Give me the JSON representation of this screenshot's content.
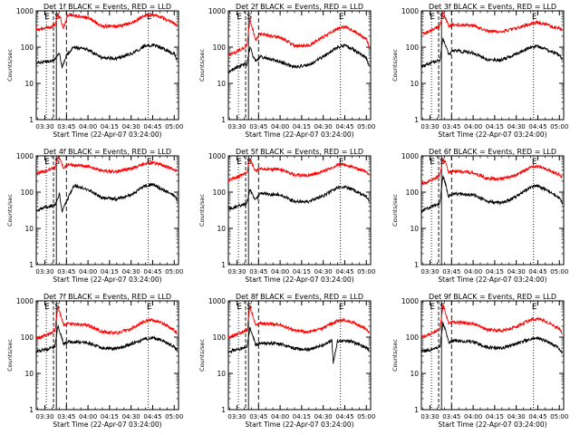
{
  "page": {
    "background": "#ffffff"
  },
  "colors": {
    "events": "#000000",
    "lld": "#ff0000",
    "axes": "#000000"
  },
  "chart_data": [
    {
      "type": "line",
      "title": "Det 1f BLACK = Events, RED = LLD",
      "xlabel": "Start Time (22-Apr-07 03:24:00)",
      "ylabel": "Counts/sec",
      "yscale": "log",
      "ylim": [
        1,
        1000
      ],
      "ytick_labels": [
        "1",
        "10",
        "100",
        "1000"
      ],
      "xlim": [
        "03:24",
        "05:03"
      ],
      "xtick_labels": [
        "03:30",
        "03:45",
        "04:00",
        "04:15",
        "04:30",
        "04:45",
        "05:00"
      ],
      "annotations": [
        "E",
        "S",
        "E"
      ],
      "series": [
        {
          "name": "BLACK = Events",
          "x": [
            "03:24",
            "03:30",
            "03:37",
            "03:40",
            "03:42",
            "03:45",
            "03:50",
            "04:00",
            "04:10",
            "04:20",
            "04:30",
            "04:40",
            "04:45",
            "04:50",
            "05:00",
            "05:02"
          ],
          "values": [
            35,
            40,
            45,
            70,
            28,
            60,
            100,
            85,
            50,
            48,
            65,
            110,
            115,
            100,
            65,
            45
          ]
        },
        {
          "name": "RED = LLD",
          "x": [
            "03:24",
            "03:30",
            "03:37",
            "03:39",
            "03:41",
            "03:43",
            "03:46",
            "04:00",
            "04:10",
            "04:20",
            "04:30",
            "04:40",
            "04:45",
            "04:50",
            "05:00",
            "05:02"
          ],
          "values": [
            300,
            330,
            400,
            800,
            600,
            330,
            800,
            650,
            380,
            370,
            450,
            750,
            780,
            700,
            450,
            380
          ]
        }
      ]
    },
    {
      "type": "line",
      "title": "Det 2f BLACK = Events, RED = LLD",
      "xlabel": "Start Time (22-Apr-07 03:24:00)",
      "ylabel": "Counts/sec",
      "yscale": "log",
      "ylim": [
        1,
        1000
      ],
      "ytick_labels": [
        "1",
        "10",
        "100",
        "1000"
      ],
      "xlim": [
        "03:24",
        "05:03"
      ],
      "xtick_labels": [
        "03:30",
        "03:45",
        "04:00",
        "04:15",
        "04:30",
        "04:45",
        "05:00"
      ],
      "annotations": [
        "E",
        "S",
        "E"
      ],
      "series": [
        {
          "name": "BLACK = Events",
          "x": [
            "03:24",
            "03:30",
            "03:37",
            "03:39",
            "03:41",
            "03:43",
            "03:46",
            "04:00",
            "04:10",
            "04:20",
            "04:30",
            "04:40",
            "04:45",
            "04:50",
            "05:00",
            "05:02"
          ],
          "values": [
            20,
            28,
            35,
            100,
            60,
            40,
            55,
            40,
            28,
            32,
            55,
            100,
            110,
            90,
            50,
            30
          ]
        },
        {
          "name": "RED = LLD",
          "x": [
            "03:24",
            "03:30",
            "03:37",
            "03:39",
            "03:41",
            "03:43",
            "03:46",
            "04:00",
            "04:10",
            "04:20",
            "04:30",
            "04:40",
            "04:45",
            "04:50",
            "05:00",
            "05:02"
          ],
          "values": [
            60,
            75,
            110,
            600,
            300,
            160,
            230,
            190,
            110,
            110,
            190,
            330,
            360,
            300,
            170,
            100
          ]
        }
      ]
    },
    {
      "type": "line",
      "title": "Det 3f BLACK = Events, RED = LLD",
      "xlabel": "Start Time (22-Apr-07 03:24:00)",
      "ylabel": "Counts/sec",
      "yscale": "log",
      "ylim": [
        1,
        1000
      ],
      "ytick_labels": [
        "1",
        "10",
        "100",
        "1000"
      ],
      "xlim": [
        "03:24",
        "05:03"
      ],
      "xtick_labels": [
        "03:30",
        "03:45",
        "04:00",
        "04:15",
        "04:30",
        "04:45",
        "05:00"
      ],
      "annotations": [
        "E",
        "S",
        "E"
      ],
      "series": [
        {
          "name": "BLACK = Events",
          "x": [
            "03:24",
            "03:30",
            "03:37",
            "03:39",
            "03:41",
            "03:43",
            "03:46",
            "04:00",
            "04:10",
            "04:20",
            "04:30",
            "04:40",
            "04:45",
            "04:50",
            "05:00",
            "05:02"
          ],
          "values": [
            28,
            35,
            45,
            180,
            110,
            60,
            80,
            70,
            45,
            45,
            65,
            100,
            105,
            90,
            60,
            45
          ]
        },
        {
          "name": "RED = LLD",
          "x": [
            "03:24",
            "03:30",
            "03:37",
            "03:39",
            "03:41",
            "03:43",
            "03:46",
            "04:00",
            "04:10",
            "04:20",
            "04:30",
            "04:40",
            "04:45",
            "04:50",
            "05:00",
            "05:02"
          ],
          "values": [
            230,
            280,
            380,
            900,
            600,
            380,
            420,
            400,
            280,
            270,
            330,
            450,
            480,
            420,
            330,
            300
          ]
        }
      ]
    },
    {
      "type": "line",
      "title": "Det 4f BLACK = Events, RED = LLD",
      "xlabel": "Start Time (22-Apr-07 03:24:00)",
      "ylabel": "Counts/sec",
      "yscale": "log",
      "ylim": [
        1,
        1000
      ],
      "ytick_labels": [
        "1",
        "10",
        "100",
        "1000"
      ],
      "xlim": [
        "03:24",
        "05:03"
      ],
      "xtick_labels": [
        "03:30",
        "03:45",
        "04:00",
        "04:15",
        "04:30",
        "04:45",
        "05:00"
      ],
      "annotations": [
        "E",
        "S",
        "E"
      ],
      "series": [
        {
          "name": "BLACK = Events",
          "x": [
            "03:24",
            "03:30",
            "03:37",
            "03:40",
            "03:42",
            "03:45",
            "03:50",
            "04:00",
            "04:10",
            "04:20",
            "04:30",
            "04:40",
            "04:45",
            "04:50",
            "05:00",
            "05:02"
          ],
          "values": [
            30,
            38,
            45,
            90,
            30,
            55,
            150,
            120,
            70,
            65,
            85,
            150,
            160,
            130,
            80,
            60
          ]
        },
        {
          "name": "RED = LLD",
          "x": [
            "03:24",
            "03:30",
            "03:37",
            "03:39",
            "03:41",
            "03:43",
            "03:46",
            "04:00",
            "04:10",
            "04:20",
            "04:30",
            "04:40",
            "04:45",
            "04:50",
            "05:00",
            "05:02"
          ],
          "values": [
            330,
            380,
            480,
            900,
            700,
            450,
            560,
            520,
            380,
            370,
            450,
            620,
            650,
            580,
            430,
            380
          ]
        }
      ]
    },
    {
      "type": "line",
      "title": "Det 5f BLACK = Events, RED = LLD",
      "xlabel": "Start Time (22-Apr-07 03:24:00)",
      "ylabel": "Counts/sec",
      "yscale": "log",
      "ylim": [
        1,
        1000
      ],
      "ytick_labels": [
        "1",
        "10",
        "100",
        "1000"
      ],
      "xlim": [
        "03:24",
        "05:03"
      ],
      "xtick_labels": [
        "03:30",
        "03:45",
        "04:00",
        "04:15",
        "04:30",
        "04:45",
        "05:00"
      ],
      "annotations": [
        "E",
        "S",
        "E"
      ],
      "series": [
        {
          "name": "BLACK = Events",
          "x": [
            "03:24",
            "03:30",
            "03:37",
            "03:39",
            "03:41",
            "03:43",
            "03:46",
            "04:00",
            "04:10",
            "04:20",
            "04:30",
            "04:40",
            "04:45",
            "04:50",
            "05:00",
            "05:02"
          ],
          "values": [
            35,
            40,
            50,
            120,
            80,
            60,
            90,
            85,
            55,
            55,
            80,
            130,
            140,
            120,
            75,
            55
          ]
        },
        {
          "name": "RED = LLD",
          "x": [
            "03:24",
            "03:30",
            "03:37",
            "03:39",
            "03:41",
            "03:43",
            "03:46",
            "04:00",
            "04:10",
            "04:20",
            "04:30",
            "04:40",
            "04:45",
            "04:50",
            "05:00",
            "05:02"
          ],
          "values": [
            220,
            260,
            350,
            850,
            550,
            380,
            450,
            420,
            300,
            290,
            370,
            550,
            580,
            500,
            360,
            320
          ]
        }
      ]
    },
    {
      "type": "line",
      "title": "Det 6f BLACK = Events, RED = LLD",
      "xlabel": "Start Time (22-Apr-07 03:24:00)",
      "ylabel": "Counts/sec",
      "yscale": "log",
      "ylim": [
        1,
        1000
      ],
      "ytick_labels": [
        "1",
        "10",
        "100",
        "1000"
      ],
      "xlim": [
        "03:24",
        "05:03"
      ],
      "xtick_labels": [
        "03:30",
        "03:45",
        "04:00",
        "04:15",
        "04:30",
        "04:45",
        "05:00"
      ],
      "annotations": [
        "E",
        "S",
        "E"
      ],
      "series": [
        {
          "name": "BLACK = Events",
          "x": [
            "03:24",
            "03:30",
            "03:37",
            "03:39",
            "03:41",
            "03:43",
            "03:46",
            "04:00",
            "04:10",
            "04:20",
            "04:30",
            "04:40",
            "04:45",
            "04:50",
            "05:00",
            "05:02"
          ],
          "values": [
            30,
            38,
            50,
            300,
            150,
            75,
            90,
            85,
            55,
            50,
            75,
            140,
            150,
            120,
            70,
            50
          ]
        },
        {
          "name": "RED = LLD",
          "x": [
            "03:24",
            "03:30",
            "03:37",
            "03:39",
            "03:41",
            "03:43",
            "03:46",
            "04:00",
            "04:10",
            "04:20",
            "04:30",
            "04:40",
            "04:45",
            "04:50",
            "05:00",
            "05:02"
          ],
          "values": [
            170,
            200,
            300,
            900,
            600,
            350,
            380,
            350,
            240,
            230,
            300,
            480,
            520,
            450,
            300,
            260
          ]
        }
      ]
    },
    {
      "type": "line",
      "title": "Det 7f BLACK = Events, RED = LLD",
      "xlabel": "Start Time (22-Apr-07 03:24:00)",
      "ylabel": "Counts/sec",
      "yscale": "log",
      "ylim": [
        1,
        1000
      ],
      "ytick_labels": [
        "1",
        "10",
        "100",
        "1000"
      ],
      "xlim": [
        "03:24",
        "05:03"
      ],
      "xtick_labels": [
        "03:30",
        "03:45",
        "04:00",
        "04:15",
        "04:30",
        "04:45",
        "05:00"
      ],
      "annotations": [
        "E",
        "S",
        "E"
      ],
      "series": [
        {
          "name": "BLACK = Events",
          "x": [
            "03:24",
            "03:30",
            "03:37",
            "03:39",
            "03:41",
            "03:43",
            "03:46",
            "04:00",
            "04:10",
            "04:20",
            "04:30",
            "04:40",
            "04:45",
            "04:50",
            "05:00",
            "05:02"
          ],
          "values": [
            40,
            45,
            55,
            200,
            120,
            65,
            75,
            70,
            50,
            48,
            65,
            90,
            95,
            85,
            55,
            45
          ]
        },
        {
          "name": "RED = LLD",
          "x": [
            "03:24",
            "03:30",
            "03:37",
            "03:39",
            "03:41",
            "03:43",
            "03:46",
            "04:00",
            "04:10",
            "04:20",
            "04:30",
            "04:40",
            "04:45",
            "04:50",
            "05:00",
            "05:02"
          ],
          "values": [
            90,
            110,
            150,
            700,
            400,
            220,
            230,
            210,
            140,
            130,
            170,
            280,
            300,
            260,
            160,
            120
          ]
        }
      ]
    },
    {
      "type": "line",
      "title": "Det 8f BLACK = Events, RED = LLD",
      "xlabel": "Start Time (22-Apr-07 03:24:00)",
      "ylabel": "Counts/sec",
      "yscale": "log",
      "ylim": [
        1,
        1000
      ],
      "ytick_labels": [
        "1",
        "10",
        "100",
        "1000"
      ],
      "xlim": [
        "03:24",
        "05:03"
      ],
      "xtick_labels": [
        "03:30",
        "03:45",
        "04:00",
        "04:15",
        "04:30",
        "04:45",
        "05:00"
      ],
      "annotations": [
        "E",
        "S",
        "E"
      ],
      "series": [
        {
          "name": "BLACK = Events",
          "x": [
            "03:24",
            "03:30",
            "03:37",
            "03:39",
            "03:41",
            "03:43",
            "03:46",
            "04:00",
            "04:10",
            "04:20",
            "04:30",
            "04:36",
            "04:37",
            "04:40",
            "04:50",
            "05:00",
            "05:02"
          ],
          "values": [
            40,
            45,
            55,
            180,
            110,
            60,
            70,
            65,
            48,
            45,
            60,
            80,
            20,
            80,
            75,
            50,
            45
          ]
        },
        {
          "name": "RED = LLD",
          "x": [
            "03:24",
            "03:30",
            "03:37",
            "03:39",
            "03:41",
            "03:43",
            "03:46",
            "04:00",
            "04:10",
            "04:20",
            "04:30",
            "04:40",
            "04:45",
            "04:50",
            "05:00",
            "05:02"
          ],
          "values": [
            100,
            120,
            160,
            700,
            400,
            230,
            240,
            220,
            150,
            140,
            180,
            280,
            300,
            260,
            170,
            130
          ]
        }
      ]
    },
    {
      "type": "line",
      "title": "Det 9f BLACK = Events, RED = LLD",
      "xlabel": "Start Time (22-Apr-07 03:24:00)",
      "ylabel": "Counts/sec",
      "yscale": "log",
      "ylim": [
        1,
        1000
      ],
      "ytick_labels": [
        "1",
        "10",
        "100",
        "1000"
      ],
      "xlim": [
        "03:24",
        "05:03"
      ],
      "xtick_labels": [
        "03:30",
        "03:45",
        "04:00",
        "04:15",
        "04:30",
        "04:45",
        "05:00"
      ],
      "annotations": [
        "E",
        "S",
        "E"
      ],
      "series": [
        {
          "name": "BLACK = Events",
          "x": [
            "03:24",
            "03:30",
            "03:37",
            "03:39",
            "03:41",
            "03:43",
            "03:46",
            "04:00",
            "04:10",
            "04:20",
            "04:30",
            "04:40",
            "04:45",
            "04:50",
            "05:00",
            "05:02"
          ],
          "values": [
            40,
            45,
            55,
            250,
            140,
            70,
            80,
            75,
            52,
            50,
            65,
            90,
            95,
            80,
            50,
            35
          ]
        },
        {
          "name": "RED = LLD",
          "x": [
            "03:24",
            "03:30",
            "03:37",
            "03:39",
            "03:41",
            "03:43",
            "03:46",
            "04:00",
            "04:10",
            "04:20",
            "04:30",
            "04:40",
            "04:45",
            "04:50",
            "05:00",
            "05:02"
          ],
          "values": [
            100,
            120,
            170,
            750,
            450,
            250,
            260,
            240,
            160,
            150,
            190,
            300,
            320,
            280,
            170,
            130
          ]
        }
      ]
    }
  ]
}
